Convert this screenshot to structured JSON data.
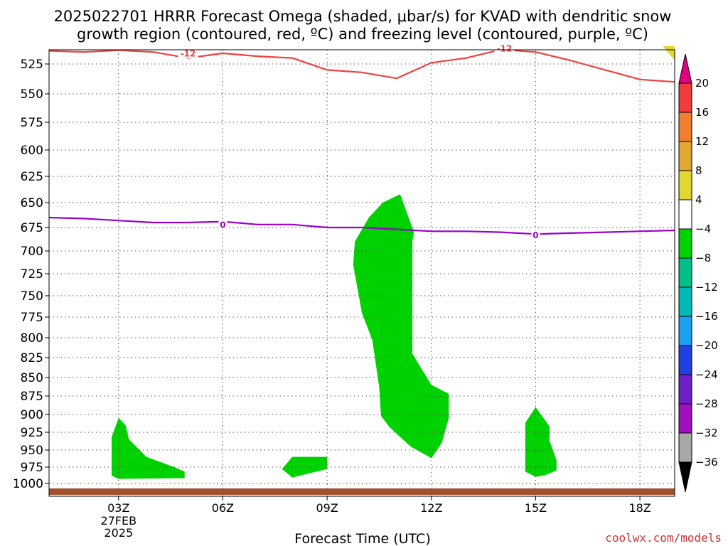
{
  "title_line1": "2025022701 HRRR Forecast Omega (shaded, μbar/s) for KVAD with dendritic snow",
  "title_line2": "growth region (contoured, red, ºC) and freezing level (contoured, purple, ºC)",
  "credit": "coolwx.com/models",
  "colors": {
    "credit": "#cc3333",
    "dgz_contour": "#f04040",
    "freezing_contour": "#9900cc",
    "ground": "#a0522d",
    "omega_shade": "#00d200",
    "omega_positive": "#e0d830"
  },
  "chart_data": {
    "type": "time-height cross section",
    "x_axis": {
      "label": "Forecast Time (UTC)",
      "range_hours_utc": [
        1,
        19
      ],
      "ticks": [
        {
          "hour": 3,
          "label": "03Z",
          "sub": [
            "27FEB",
            "2025"
          ]
        },
        {
          "hour": 6,
          "label": "06Z"
        },
        {
          "hour": 9,
          "label": "09Z"
        },
        {
          "hour": 12,
          "label": "12Z"
        },
        {
          "hour": 15,
          "label": "15Z"
        },
        {
          "hour": 18,
          "label": "18Z"
        }
      ]
    },
    "y_axis": {
      "units": "mb",
      "range": [
        508,
        1012
      ],
      "ticks": [
        525,
        550,
        575,
        600,
        625,
        650,
        675,
        700,
        725,
        750,
        775,
        800,
        825,
        850,
        875,
        900,
        925,
        950,
        975,
        1000
      ],
      "ticks_pixel_ref": [
        {
          "p": 525,
          "y": 90
        },
        {
          "p": 550,
          "y": 132
        },
        {
          "p": 575,
          "y": 172
        },
        {
          "p": 600,
          "y": 211
        },
        {
          "p": 625,
          "y": 248
        },
        {
          "p": 650,
          "y": 285
        },
        {
          "p": 675,
          "y": 320
        },
        {
          "p": 700,
          "y": 353
        },
        {
          "p": 725,
          "y": 385
        },
        {
          "p": 750,
          "y": 416
        },
        {
          "p": 775,
          "y": 446
        },
        {
          "p": 800,
          "y": 475
        },
        {
          "p": 825,
          "y": 503
        },
        {
          "p": 850,
          "y": 531
        },
        {
          "p": 875,
          "y": 557
        },
        {
          "p": 900,
          "y": 583
        },
        {
          "p": 925,
          "y": 608
        },
        {
          "p": 950,
          "y": 633
        },
        {
          "p": 975,
          "y": 657
        },
        {
          "p": 1000,
          "y": 680
        }
      ],
      "grid": "dotted"
    },
    "contours": [
      {
        "name": "dgz",
        "value": -12,
        "label": "-12",
        "label_at": [
          {
            "hour": 5.0,
            "p": 516
          },
          {
            "hour": 14.1,
            "p": 512
          }
        ],
        "points": [
          [
            1.0,
            514
          ],
          [
            2.0,
            515
          ],
          [
            3.0,
            513.5
          ],
          [
            4.0,
            515
          ],
          [
            5.0,
            520
          ],
          [
            6.0,
            516
          ],
          [
            7.0,
            518.5
          ],
          [
            8.0,
            520
          ],
          [
            8.9,
            529
          ],
          [
            9.0,
            530
          ],
          [
            10.0,
            532
          ],
          [
            11.0,
            537
          ],
          [
            12.0,
            524
          ],
          [
            13.0,
            520
          ],
          [
            14.0,
            513
          ],
          [
            15.0,
            515
          ],
          [
            16.0,
            522
          ],
          [
            17.0,
            530
          ],
          [
            18.0,
            538
          ],
          [
            19.0,
            540
          ]
        ]
      },
      {
        "name": "freezing",
        "value": 0,
        "label": "0",
        "label_at": [
          {
            "hour": 6.0,
            "p": 672
          },
          {
            "hour": 15.0,
            "p": 683
          }
        ],
        "points": [
          [
            1.0,
            665
          ],
          [
            2.0,
            666
          ],
          [
            3.0,
            668
          ],
          [
            4.0,
            670
          ],
          [
            5.0,
            670
          ],
          [
            6.0,
            669
          ],
          [
            7.0,
            672
          ],
          [
            8.0,
            672
          ],
          [
            9.0,
            675
          ],
          [
            10.0,
            675
          ],
          [
            11.0,
            677
          ],
          [
            12.0,
            679
          ],
          [
            13.0,
            679
          ],
          [
            14.0,
            680
          ],
          [
            15.0,
            682
          ],
          [
            16.0,
            681
          ],
          [
            17.0,
            680
          ],
          [
            18.0,
            679
          ],
          [
            19.0,
            678
          ]
        ]
      }
    ],
    "omega_regions": [
      {
        "range": [
          -8,
          -4
        ],
        "points": [
          [
            10.2,
            665
          ],
          [
            10.6,
            650
          ],
          [
            11.1,
            642
          ],
          [
            11.5,
            680
          ],
          [
            11.45,
            690
          ],
          [
            11.45,
            820
          ],
          [
            12.0,
            860
          ],
          [
            12.5,
            872
          ],
          [
            12.5,
            905
          ],
          [
            12.3,
            940
          ],
          [
            12.0,
            962
          ],
          [
            11.4,
            945
          ],
          [
            10.8,
            918
          ],
          [
            10.55,
            902
          ],
          [
            10.5,
            863
          ],
          [
            10.3,
            803
          ],
          [
            10.0,
            770
          ],
          [
            9.75,
            715
          ],
          [
            9.8,
            690
          ]
        ]
      },
      {
        "range": [
          -8,
          -4
        ],
        "points": [
          [
            2.8,
            932
          ],
          [
            3.0,
            905
          ],
          [
            3.2,
            915
          ],
          [
            3.3,
            935
          ],
          [
            3.8,
            960
          ],
          [
            4.6,
            975
          ],
          [
            4.9,
            982
          ],
          [
            4.9,
            992
          ],
          [
            3.0,
            993
          ],
          [
            2.8,
            988
          ]
        ]
      },
      {
        "range": [
          -8,
          -4
        ],
        "points": [
          [
            7.7,
            978
          ],
          [
            8.0,
            960
          ],
          [
            9.0,
            960
          ],
          [
            9.0,
            978
          ],
          [
            8.3,
            987
          ],
          [
            8.0,
            991
          ]
        ]
      },
      {
        "range": [
          -8,
          -4
        ],
        "points": [
          [
            14.7,
            912
          ],
          [
            15.0,
            890
          ],
          [
            15.4,
            917
          ],
          [
            15.4,
            937
          ],
          [
            15.6,
            965
          ],
          [
            15.6,
            980
          ],
          [
            15.3,
            987
          ],
          [
            15.0,
            990
          ],
          [
            14.7,
            982
          ]
        ]
      },
      {
        "range": [
          4,
          8
        ],
        "points": [
          [
            18.65,
            510
          ],
          [
            19.0,
            510
          ],
          [
            19.0,
            522
          ]
        ]
      }
    ],
    "colorbar": {
      "arrow_top": "#e0007f",
      "arrow_bottom": "#000000",
      "levels": [
        {
          "from": 16,
          "to": 20,
          "color": "#f03c3c"
        },
        {
          "from": 12,
          "to": 16,
          "color": "#f08030"
        },
        {
          "from": 8,
          "to": 12,
          "color": "#e0a830"
        },
        {
          "from": 4,
          "to": 8,
          "color": "#e0d830"
        },
        {
          "from": -4,
          "to": 4,
          "color": "#ffffff"
        },
        {
          "from": -8,
          "to": -4,
          "color": "#00d200"
        },
        {
          "from": -12,
          "to": -8,
          "color": "#00c088"
        },
        {
          "from": -16,
          "to": -12,
          "color": "#00b8b8"
        },
        {
          "from": -20,
          "to": -16,
          "color": "#1ea0f0"
        },
        {
          "from": -24,
          "to": -20,
          "color": "#2040e0"
        },
        {
          "from": -28,
          "to": -24,
          "color": "#7020c8"
        },
        {
          "from": -32,
          "to": -28,
          "color": "#a010c0"
        },
        {
          "from": -36,
          "to": -32,
          "color": "#a8a8a8"
        }
      ],
      "tick_labels": [
        "20",
        "16",
        "12",
        "8",
        "4",
        "−4",
        "−8",
        "−12",
        "−16",
        "−20",
        "−24",
        "−28",
        "−32",
        "−36"
      ]
    }
  }
}
